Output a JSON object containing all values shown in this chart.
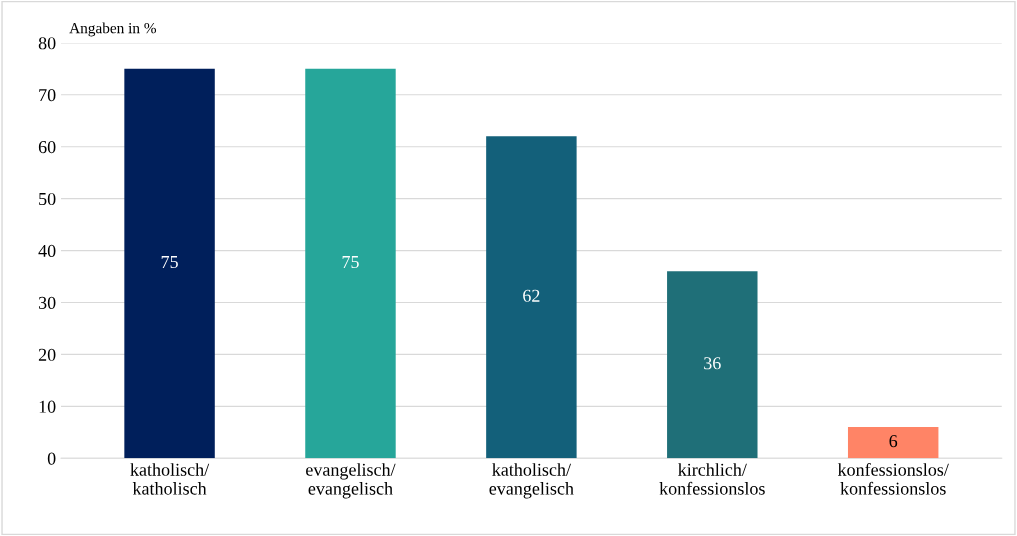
{
  "chart_data": {
    "type": "bar",
    "categories": [
      "katholisch/\nkatholisch",
      "evangelisch/\nevangelisch",
      "katholisch/\nevangelisch",
      "kirchlich/\nkonfessionslos",
      "konfessionslos/\nkonfessionslos"
    ],
    "values": [
      75,
      75,
      62,
      36,
      6
    ],
    "colors": [
      "#001f5b",
      "#26a69a",
      "#13607a",
      "#1f6f78",
      "#ff8466"
    ],
    "ylim": [
      0,
      80
    ],
    "yticks": [
      0,
      10,
      20,
      30,
      40,
      50,
      60,
      70,
      80
    ],
    "grid": "y",
    "data_labels": true,
    "annotations": [
      "Angaben in %"
    ]
  }
}
